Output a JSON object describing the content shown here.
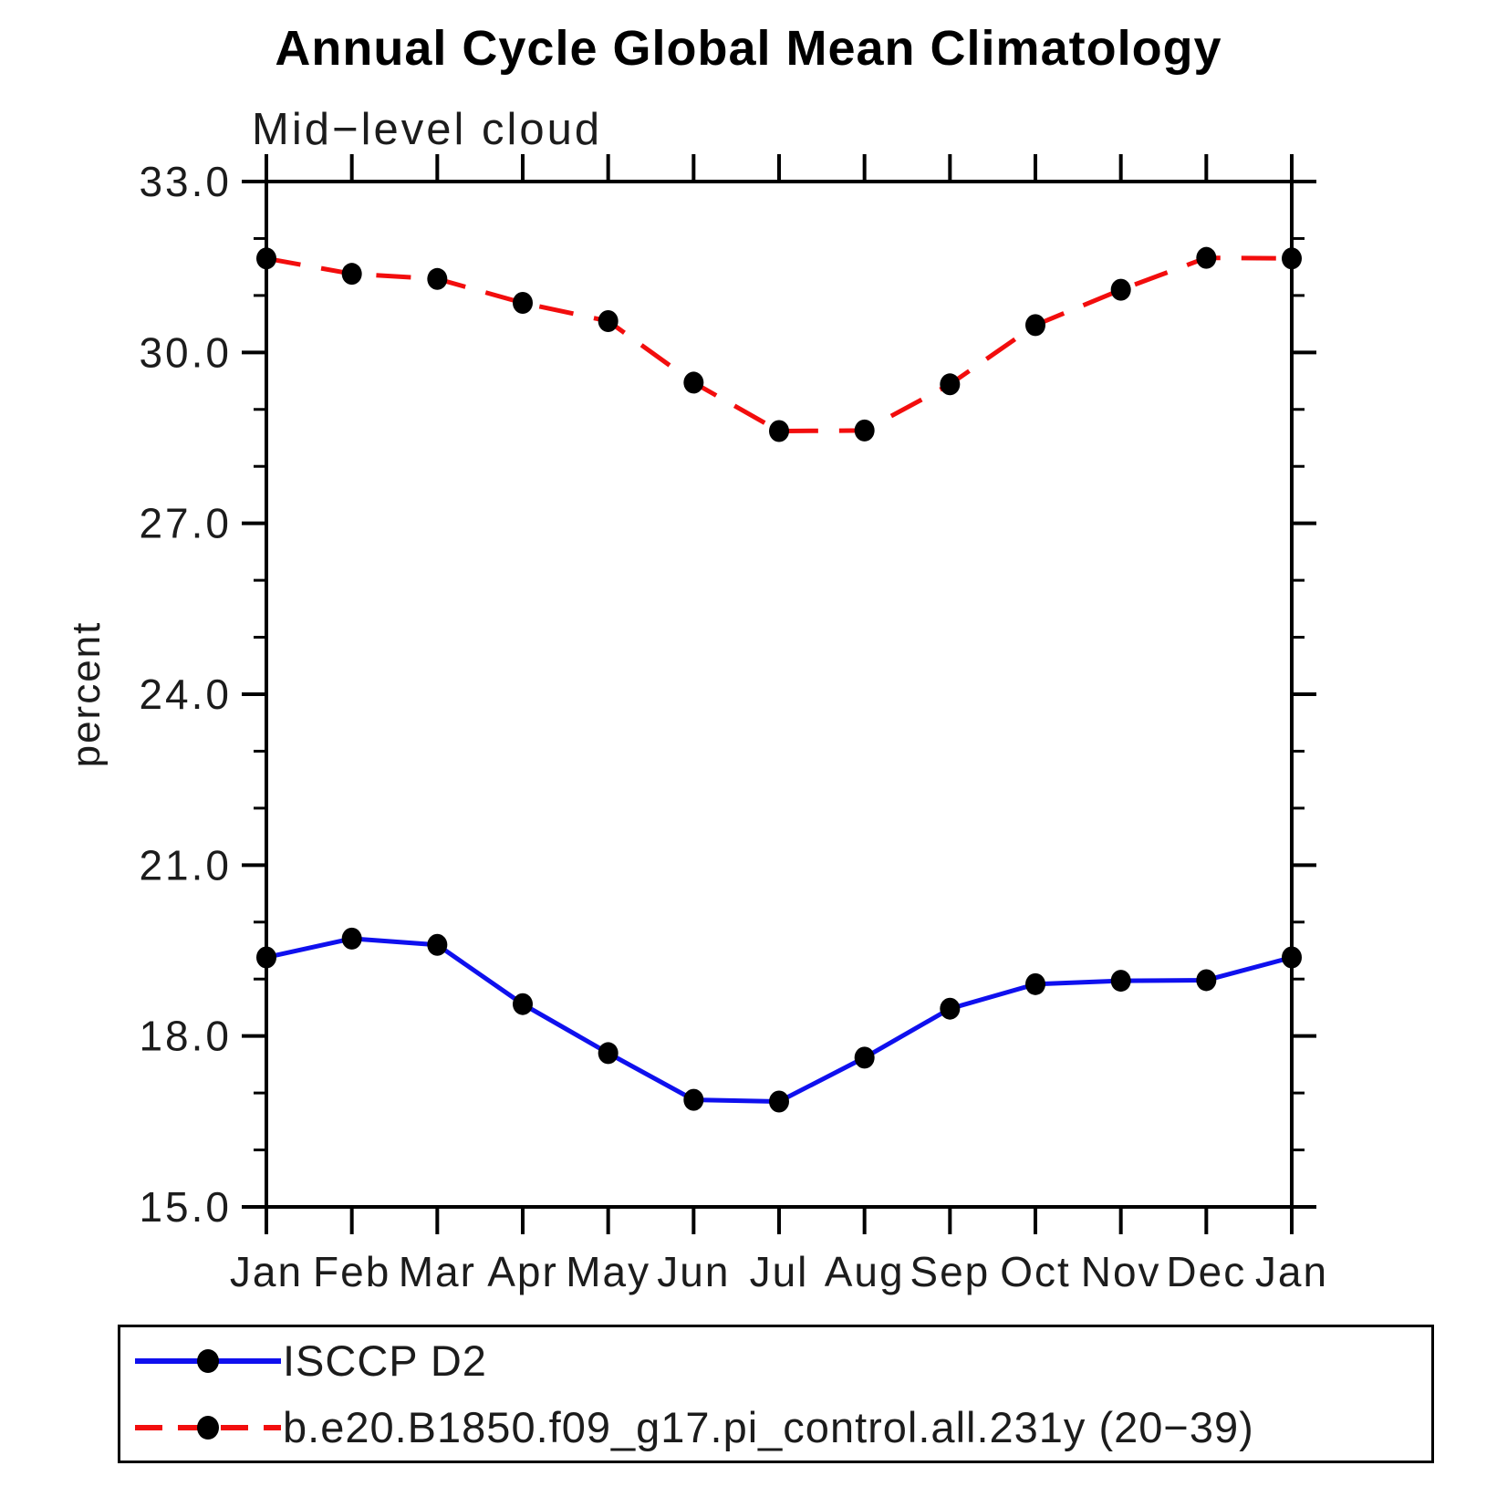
{
  "chart_data": {
    "type": "line",
    "title": "Annual Cycle Global Mean Climatology",
    "subtitle": "Mid−level cloud",
    "ylabel": "percent",
    "xlabel": "",
    "categories": [
      "Jan",
      "Feb",
      "Mar",
      "Apr",
      "May",
      "Jun",
      "Jul",
      "Aug",
      "Sep",
      "Oct",
      "Nov",
      "Dec",
      "Jan"
    ],
    "ylim": [
      15.0,
      33.0
    ],
    "ytick_major": [
      15.0,
      18.0,
      21.0,
      24.0,
      27.0,
      30.0,
      33.0
    ],
    "ytick_labels": [
      "15.0",
      "18.0",
      "21.0",
      "24.0",
      "27.0",
      "30.0",
      "33.0"
    ],
    "ytick_minor_step": 1.0,
    "grid": false,
    "legend_position": "bottom",
    "axis_color": "#000000",
    "marker_color": "#000000",
    "series": [
      {
        "name": "ISCCP D2",
        "style": "solid",
        "color": "#0f10ee",
        "marker": "circle",
        "values": [
          19.38,
          19.71,
          19.6,
          18.56,
          17.7,
          16.88,
          16.85,
          17.62,
          18.48,
          18.91,
          18.97,
          18.98,
          19.38
        ]
      },
      {
        "name": "b.e20.B1850.f09_g17.pi_control.all.231y (20−39)",
        "style": "dashed",
        "color": "#f20d0d",
        "marker": "circle",
        "values": [
          31.65,
          31.38,
          31.29,
          30.87,
          30.55,
          29.47,
          28.62,
          28.63,
          29.44,
          30.48,
          31.1,
          31.66,
          31.65
        ]
      }
    ]
  }
}
